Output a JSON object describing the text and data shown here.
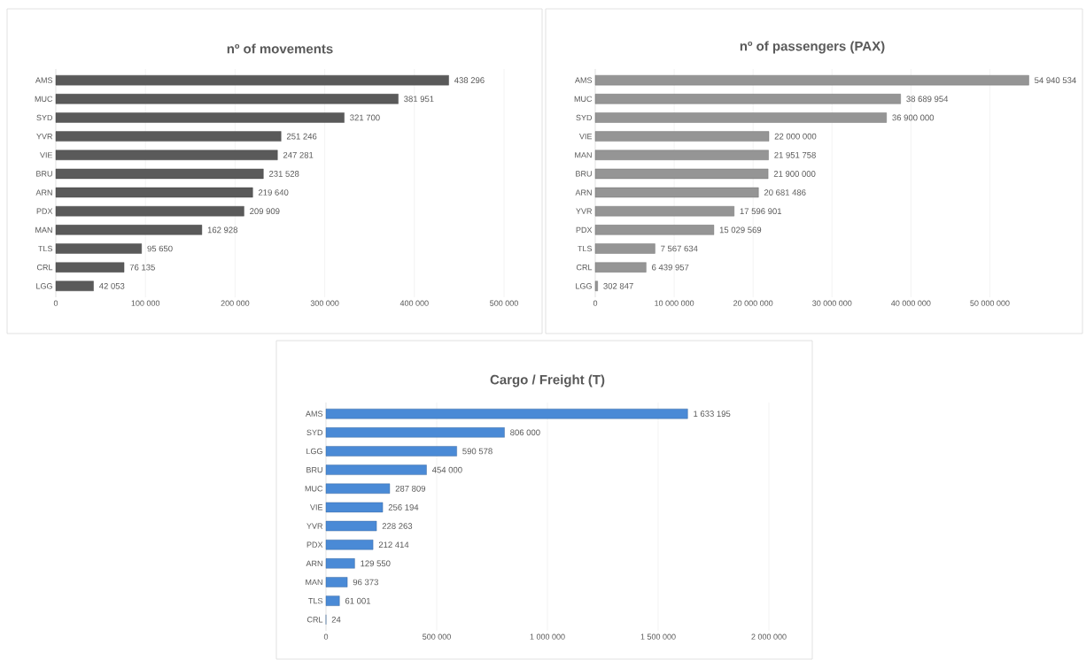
{
  "chart_data": [
    {
      "type": "bar",
      "orientation": "horizontal",
      "title": "nº of movements",
      "color": "#5a5a5a",
      "grid": "x",
      "categories": [
        "AMS",
        "MUC",
        "SYD",
        "YVR",
        "VIE",
        "BRU",
        "ARN",
        "PDX",
        "MAN",
        "TLS",
        "CRL",
        "LGG"
      ],
      "values": [
        438296,
        381951,
        321700,
        251246,
        247281,
        231528,
        219640,
        209909,
        162928,
        95650,
        76135,
        42053
      ],
      "value_labels": [
        "438 296",
        "381 951",
        "321 700",
        "251 246",
        "247 281",
        "231 528",
        "219 640",
        "209 909",
        "162 928",
        "95 650",
        "76 135",
        "42 053"
      ],
      "xlim": [
        0,
        500000
      ],
      "xticks": [
        0,
        {
          "value": 100000,
          "label": "100 000"
        },
        {
          "value": 200000,
          "label": "200 000"
        },
        {
          "value": 300000,
          "label": "300 000"
        },
        {
          "value": 400000,
          "label": "400 000"
        },
        {
          "value": 500000,
          "label": "500 000"
        }
      ]
    },
    {
      "type": "bar",
      "orientation": "horizontal",
      "title": "nº of passengers (PAX)",
      "color": "#959595",
      "grid": "x",
      "categories": [
        "AMS",
        "MUC",
        "SYD",
        "VIE",
        "MAN",
        "BRU",
        "ARN",
        "YVR",
        "PDX",
        "TLS",
        "CRL",
        "LGG"
      ],
      "values": [
        54940534,
        38689954,
        36900000,
        22000000,
        21951758,
        21900000,
        20681486,
        17596901,
        15029569,
        7567634,
        6439957,
        302847
      ],
      "value_labels": [
        "54 940 534",
        "38 689 954",
        "36 900 000",
        "22 000 000",
        "21 951 758",
        "21 900 000",
        "20 681 486",
        "17 596 901",
        "15 029 569",
        "7 567 634",
        "6 439 957",
        "302 847"
      ],
      "xlim": [
        0,
        55000000
      ],
      "xticks": [
        0,
        {
          "value": 10000000,
          "label": "10 000 000"
        },
        {
          "value": 20000000,
          "label": "20 000 000"
        },
        {
          "value": 30000000,
          "label": "30 000 000"
        },
        {
          "value": 40000000,
          "label": "40 000 000"
        },
        {
          "value": 50000000,
          "label": "50 000 000"
        }
      ]
    },
    {
      "type": "bar",
      "orientation": "horizontal",
      "title": "Cargo / Freight (T)",
      "color": "#4a8ad6",
      "grid": "x",
      "categories": [
        "AMS",
        "SYD",
        "LGG",
        "BRU",
        "MUC",
        "VIE",
        "YVR",
        "PDX",
        "ARN",
        "MAN",
        "TLS",
        "CRL"
      ],
      "values": [
        1633195,
        806000,
        590578,
        454000,
        287809,
        256194,
        228263,
        212414,
        129550,
        96373,
        61001,
        24
      ],
      "value_labels": [
        "1 633 195",
        "806 000",
        "590 578",
        "454 000",
        "287 809",
        "256 194",
        "228 263",
        "212 414",
        "129 550",
        "96 373",
        "61 001",
        "24"
      ],
      "xlim": [
        0,
        2000000
      ],
      "xticks": [
        0,
        {
          "value": 500000,
          "label": "500 000"
        },
        {
          "value": 1000000,
          "label": "1 000 000"
        },
        {
          "value": 1500000,
          "label": "1 500 000"
        },
        {
          "value": 2000000,
          "label": "2 000 000"
        }
      ]
    }
  ]
}
